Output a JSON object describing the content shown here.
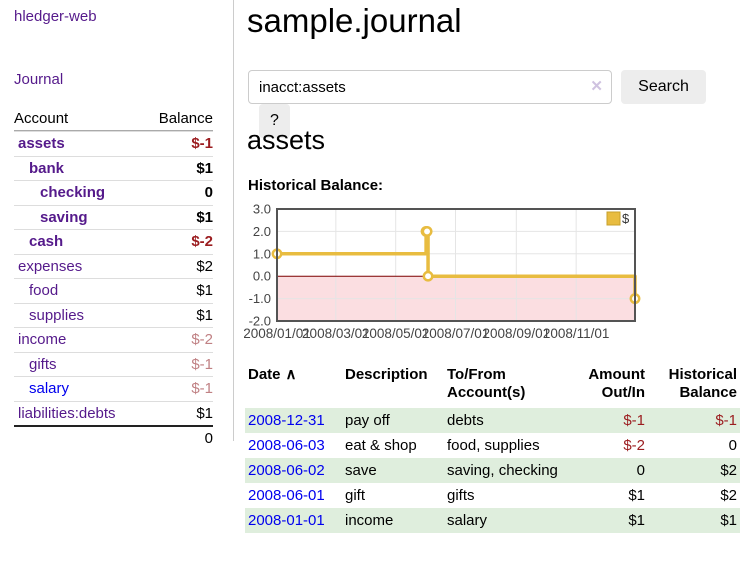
{
  "colors": {
    "link_purple": "#551A8B",
    "link_blue": "#0000EE",
    "negative_dark": "#9b1c1f",
    "negative_light": "#c08184",
    "row_green": "#dfeedd",
    "button_gray": "#ededed"
  },
  "sidebar": {
    "app_title": "hledger-web",
    "nav": {
      "journal": "Journal"
    },
    "accounts_table": {
      "headers": {
        "account": "Account",
        "balance": "Balance"
      },
      "rows": [
        {
          "name": "assets",
          "balance": "$-1"
        },
        {
          "name": "bank",
          "balance": "$1"
        },
        {
          "name": "checking",
          "balance": "0"
        },
        {
          "name": "saving",
          "balance": "$1"
        },
        {
          "name": "cash",
          "balance": "$-2"
        },
        {
          "name": "expenses",
          "balance": "$2"
        },
        {
          "name": "food",
          "balance": "$1"
        },
        {
          "name": "supplies",
          "balance": "$1"
        },
        {
          "name": "income",
          "balance": "$-2"
        },
        {
          "name": "gifts",
          "balance": "$-1"
        },
        {
          "name": "salary",
          "balance": "$-1"
        },
        {
          "name": "liabilities:debts",
          "balance": "$1"
        }
      ],
      "total": "0"
    }
  },
  "main": {
    "title": "sample.journal",
    "search": {
      "value": "inacct:assets",
      "clear_icon": "✕",
      "search_button": "Search",
      "help_button": "?"
    },
    "account_heading": "assets",
    "section_label": "Historical Balance:"
  },
  "chart_data": {
    "type": "line",
    "title": "Historical Balance",
    "series": [
      {
        "name": "$",
        "step": true,
        "points": [
          [
            "2008-01-01",
            1
          ],
          [
            "2008-06-01",
            2
          ],
          [
            "2008-06-02",
            2
          ],
          [
            "2008-06-03",
            0
          ],
          [
            "2008-12-31",
            -1
          ]
        ]
      }
    ],
    "x_range": [
      "2008-01-01",
      "2008-12-31"
    ],
    "x_tick_labels": [
      "2008/01/01",
      "2008/03/01",
      "2008/05/01",
      "2008/07/01",
      "2008/09/01",
      "2008/11/01"
    ],
    "y_ticks": [
      3,
      2,
      1,
      0,
      -1,
      -2
    ],
    "ylim": [
      -2,
      3
    ],
    "grid": true,
    "legend": {
      "label": "$",
      "position": "top-right"
    },
    "line_color": "#E8BC40",
    "negative_region_color": "#fbdee1",
    "zero_line_color": "#7d0000",
    "grid_color": "#e5e5e5",
    "border_color": "#545454",
    "tick_label_color": "#444444"
  },
  "transactions": {
    "headers": {
      "date": "Date",
      "sort_icon": "∧",
      "description": "Description",
      "accounts": "To/From\nAccount(s)",
      "amount": "Amount\nOut/In",
      "balance": "Historical\nBalance"
    },
    "rows": [
      {
        "date": "2008-12-31",
        "description": "pay off",
        "accounts": "debts",
        "amount": "$-1",
        "balance": "$-1"
      },
      {
        "date": "2008-06-03",
        "description": "eat & shop",
        "accounts": "food, supplies",
        "amount": "$-2",
        "balance": "0"
      },
      {
        "date": "2008-06-02",
        "description": "save",
        "accounts": "saving, checking",
        "amount": "0",
        "balance": "$2"
      },
      {
        "date": "2008-06-01",
        "description": "gift",
        "accounts": "gifts",
        "amount": "$1",
        "balance": "$2"
      },
      {
        "date": "2008-01-01",
        "description": "income",
        "accounts": "salary",
        "amount": "$1",
        "balance": "$1"
      }
    ]
  }
}
